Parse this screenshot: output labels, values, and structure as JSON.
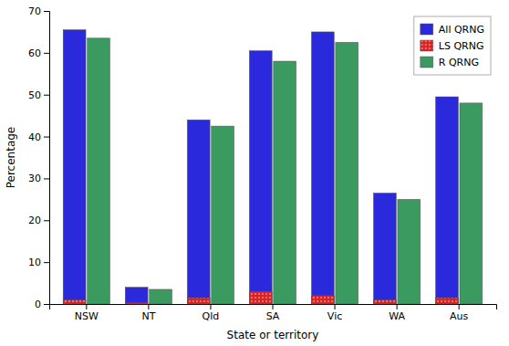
{
  "chart_data": {
    "type": "bar",
    "categories": [
      "NSW",
      "NT",
      "Qld",
      "SA",
      "Vic",
      "WA",
      "Aus"
    ],
    "series": [
      {
        "name": "All QRNG",
        "color": "#2a2adc",
        "values": [
          65.5,
          4.0,
          44.0,
          60.5,
          65.0,
          26.5,
          49.5
        ]
      },
      {
        "name": "LS QRNG",
        "color": "#dd2222",
        "values": [
          1.0,
          0.3,
          1.5,
          3.0,
          2.0,
          1.0,
          1.5
        ]
      },
      {
        "name": "R QRNG",
        "color": "#3a9a60",
        "values": [
          63.5,
          3.5,
          42.5,
          58.0,
          62.5,
          25.0,
          48.0
        ]
      }
    ],
    "xlabel": "State or territory",
    "ylabel": "Percentage",
    "ylim": [
      0,
      70
    ],
    "yticks": [
      0,
      10,
      20,
      30,
      40,
      50,
      60,
      70
    ],
    "grid": false,
    "legend": "upper right"
  }
}
